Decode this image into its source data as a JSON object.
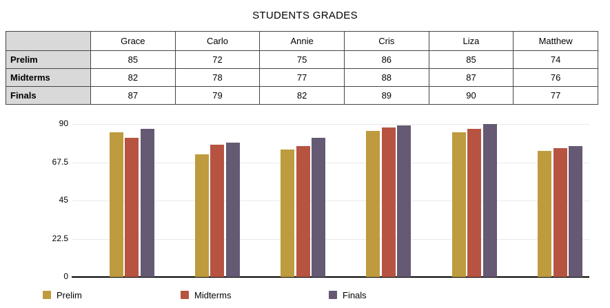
{
  "title": "STUDENTS GRADES",
  "table": {
    "corner_label": "",
    "columns": [
      "Grace",
      "Carlo",
      "Annie",
      "Cris",
      "Liza",
      "Matthew"
    ],
    "rows": [
      {
        "label": "Prelim",
        "values": [
          85,
          72,
          75,
          86,
          85,
          74
        ]
      },
      {
        "label": "Midterms",
        "values": [
          82,
          78,
          77,
          88,
          87,
          76
        ]
      },
      {
        "label": "Finals",
        "values": [
          87,
          79,
          82,
          89,
          90,
          77
        ]
      }
    ]
  },
  "chart_data": {
    "type": "bar",
    "title": "STUDENTS GRADES",
    "categories": [
      "Grace",
      "Carlo",
      "Annie",
      "Cris",
      "Liza",
      "Matthew"
    ],
    "series": [
      {
        "name": "Prelim",
        "color": "#BE9B3E",
        "values": [
          85,
          72,
          75,
          86,
          85,
          74
        ]
      },
      {
        "name": "Midterms",
        "color": "#B65441",
        "values": [
          82,
          78,
          77,
          88,
          87,
          76
        ]
      },
      {
        "name": "Finals",
        "color": "#655973",
        "values": [
          87,
          79,
          82,
          89,
          90,
          77
        ]
      }
    ],
    "ylim": [
      0,
      90
    ],
    "yticks": [
      90,
      67.5,
      45,
      22.5,
      0
    ],
    "ytick_labels": [
      "90",
      "67.5",
      "45",
      "22.5",
      "0"
    ],
    "grid": true,
    "legend": [
      "Prelim",
      "Midterms",
      "Finals"
    ],
    "legend_position": "bottom",
    "xlabel": "",
    "ylabel": ""
  },
  "colors": {
    "prelim": "#BE9B3E",
    "midterms": "#B65441",
    "finals": "#655973",
    "table_header_bg": "#D9D9D9",
    "gridline": "#E9E9E9",
    "axis": "#000000"
  }
}
